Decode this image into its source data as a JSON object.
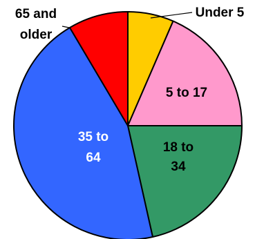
{
  "chart_data": {
    "type": "pie",
    "title": "",
    "categories": [
      "Under 5",
      "5 to 17",
      "18 to 34",
      "35 to 64",
      "65 and older"
    ],
    "values": [
      6.5,
      18.5,
      21.5,
      45.0,
      8.5
    ],
    "colors": [
      "#ffcc00",
      "#ff99cc",
      "#339966",
      "#3366ff",
      "#ff0000"
    ],
    "label_lines": [
      [
        "Under 5"
      ],
      [
        "5 to 17"
      ],
      [
        "18 to",
        "34"
      ],
      [
        "35 to",
        "64"
      ],
      [
        "65 and",
        "older"
      ]
    ],
    "start_angle_deg": 0,
    "direction": "clockwise",
    "legend": "none"
  }
}
